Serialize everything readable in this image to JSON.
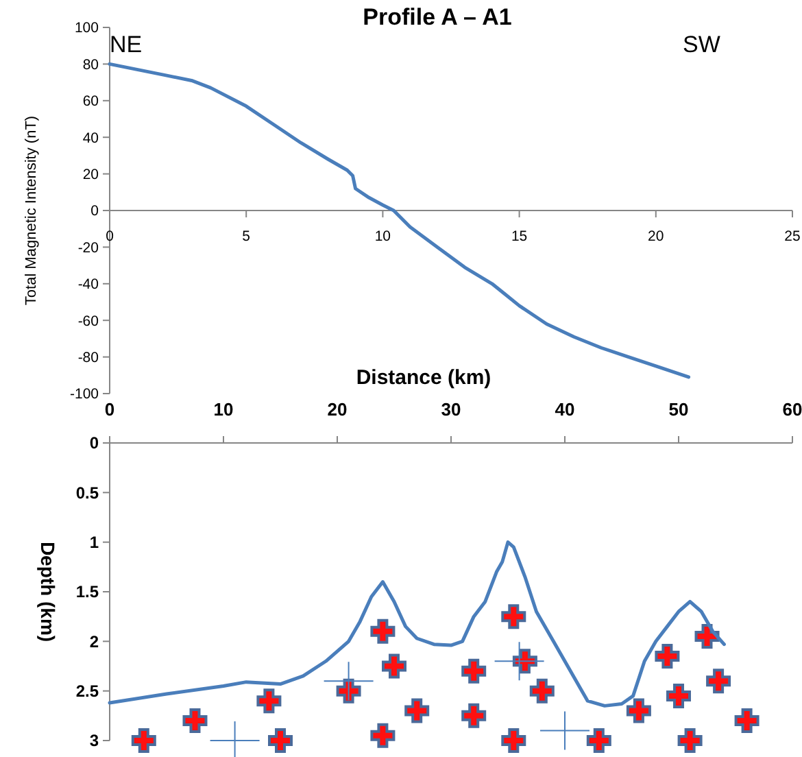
{
  "chart_data": [
    {
      "type": "line",
      "title": "Profile A – A1",
      "ylabel": "Total Magnetic Intensity (nT)",
      "xlim": [
        0,
        25
      ],
      "xticks": [
        0,
        5,
        10,
        15,
        20,
        25
      ],
      "ylim": [
        -100,
        100
      ],
      "yticks": [
        -100,
        -80,
        -60,
        -40,
        -20,
        0,
        20,
        40,
        60,
        80,
        100
      ],
      "annotations": [
        "NE",
        "SW"
      ],
      "series": [
        {
          "color": "#4a7ebb",
          "x": [
            0,
            1,
            2,
            3,
            3.7,
            5,
            6,
            7,
            8,
            8.7,
            8.9,
            9.0,
            9.5,
            10,
            10.4,
            11,
            12,
            13,
            14,
            14.5,
            15,
            16,
            17,
            18,
            19,
            20,
            21.2
          ],
          "values": [
            80,
            77,
            74,
            71,
            67,
            57,
            47,
            37,
            28,
            22,
            19,
            12,
            7,
            3,
            0,
            -9,
            -20,
            -31,
            -40,
            -46,
            -52,
            -62,
            -69,
            -75,
            -80,
            -85,
            -91
          ]
        }
      ]
    },
    {
      "type": "line",
      "xlabel": "Distance (km)",
      "ylabel": "Depth (km)",
      "xlim": [
        0,
        60
      ],
      "xticks": [
        0,
        10,
        20,
        30,
        40,
        50,
        60
      ],
      "ylim": [
        3,
        0
      ],
      "yticks": [
        0,
        0.5,
        1,
        1.5,
        2,
        2.5,
        3
      ],
      "series": [
        {
          "color": "#4a7ebb",
          "x": [
            0,
            5,
            10,
            12,
            15,
            17,
            19,
            21,
            22,
            23,
            24,
            25,
            26,
            27,
            28.5,
            30,
            31,
            32,
            33,
            34,
            34.5,
            35,
            35.5,
            36.5,
            37.5,
            39,
            40.5,
            41.5,
            42,
            43.5,
            45,
            46,
            47,
            48,
            49,
            50,
            51,
            52,
            53,
            54
          ],
          "values": [
            2.62,
            2.53,
            2.45,
            2.41,
            2.43,
            2.35,
            2.2,
            2.0,
            1.8,
            1.55,
            1.4,
            1.6,
            1.85,
            1.97,
            2.03,
            2.04,
            2.0,
            1.75,
            1.6,
            1.3,
            1.2,
            1.0,
            1.05,
            1.35,
            1.7,
            2.0,
            2.3,
            2.5,
            2.6,
            2.65,
            2.63,
            2.55,
            2.2,
            2.0,
            1.85,
            1.7,
            1.6,
            1.7,
            1.9,
            2.03
          ]
        }
      ]
    }
  ]
}
